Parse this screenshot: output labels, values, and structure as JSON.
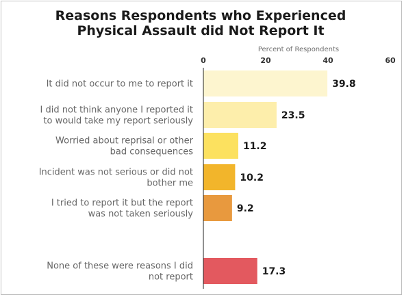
{
  "chart_data": {
    "type": "bar",
    "orientation": "horizontal",
    "title_lines": [
      "Reasons Respondents who Experienced",
      "Physical Assault did Not Report It"
    ],
    "xlabel": "Percent of Respondents",
    "xlim": [
      0,
      60
    ],
    "xticks": [
      "0",
      "20",
      "40",
      "60"
    ],
    "categories": [
      {
        "lines": [
          "It did not occur to me to report it"
        ],
        "value": 39.8,
        "label": "39.8",
        "color": "#fdf5cf"
      },
      {
        "lines": [
          "I did not think anyone I reported it",
          "to would take my report seriously"
        ],
        "value": 23.5,
        "label": "23.5",
        "color": "#fdeeab"
      },
      {
        "lines": [
          "Worried about reprisal or other",
          "bad consequences"
        ],
        "value": 11.2,
        "label": "11.2",
        "color": "#fce15f"
      },
      {
        "lines": [
          "Incident was not serious or did not",
          "bother me"
        ],
        "value": 10.2,
        "label": "10.2",
        "color": "#f2b52b"
      },
      {
        "lines": [
          "I tried to report it but the report",
          "was not taken seriously"
        ],
        "value": 9.2,
        "label": "9.2",
        "color": "#e8993e"
      },
      {
        "lines": [
          "None of these were reasons I did",
          "not report"
        ],
        "value": 17.3,
        "label": "17.3",
        "color": "#e3595f"
      }
    ],
    "grid": false,
    "legend": "none"
  }
}
